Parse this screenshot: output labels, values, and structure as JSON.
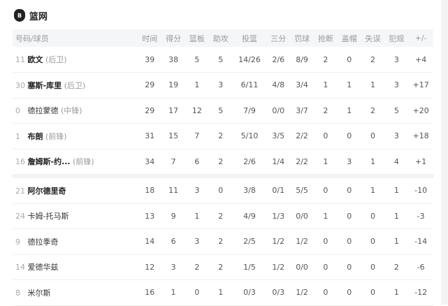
{
  "team": {
    "name": "篮网",
    "logo_text": "B"
  },
  "columns": [
    "号码/球员",
    "时间",
    "得分",
    "篮板",
    "助攻",
    "投篮",
    "三分",
    "罚球",
    "抢断",
    "盖帽",
    "失误",
    "犯规",
    "+/-"
  ],
  "starters": [
    {
      "no": "11",
      "name": "欧文",
      "pos": "(后卫)",
      "bold": true,
      "stats": [
        "39",
        "38",
        "5",
        "5",
        "14/26",
        "2/6",
        "8/9",
        "2",
        "0",
        "2",
        "3",
        "+4"
      ]
    },
    {
      "no": "30",
      "name": "塞斯-库里",
      "pos": "(后卫)",
      "bold": true,
      "stats": [
        "29",
        "19",
        "1",
        "3",
        "6/11",
        "4/8",
        "3/4",
        "1",
        "1",
        "1",
        "3",
        "+17"
      ]
    },
    {
      "no": "0",
      "name": "德拉蒙德",
      "pos": "(中锋)",
      "bold": false,
      "stats": [
        "29",
        "17",
        "12",
        "5",
        "7/9",
        "0/0",
        "3/7",
        "2",
        "1",
        "2",
        "5",
        "+20"
      ]
    },
    {
      "no": "1",
      "name": "布朗",
      "pos": "(前锋)",
      "bold": true,
      "stats": [
        "31",
        "15",
        "7",
        "2",
        "5/10",
        "3/5",
        "2/2",
        "0",
        "0",
        "0",
        "3",
        "+18"
      ]
    },
    {
      "no": "16",
      "name": "詹姆斯-约...",
      "pos": "(前锋)",
      "bold": true,
      "stats": [
        "34",
        "7",
        "6",
        "2",
        "2/6",
        "1/4",
        "2/2",
        "1",
        "3",
        "1",
        "4",
        "+1"
      ]
    }
  ],
  "bench": [
    {
      "no": "21",
      "name": "阿尔德里奇",
      "pos": "",
      "bold": true,
      "stats": [
        "18",
        "11",
        "3",
        "0",
        "3/8",
        "0/1",
        "5/5",
        "0",
        "0",
        "1",
        "1",
        "-10"
      ]
    },
    {
      "no": "24",
      "name": "卡姆-托马斯",
      "pos": "",
      "bold": false,
      "stats": [
        "13",
        "9",
        "1",
        "2",
        "4/9",
        "1/3",
        "0/0",
        "1",
        "0",
        "0",
        "1",
        "-3"
      ]
    },
    {
      "no": "9",
      "name": "德拉季奇",
      "pos": "",
      "bold": false,
      "stats": [
        "14",
        "6",
        "3",
        "2",
        "2/5",
        "1/2",
        "1/2",
        "0",
        "0",
        "0",
        "1",
        "-14"
      ]
    },
    {
      "no": "14",
      "name": "爱德华兹",
      "pos": "",
      "bold": false,
      "stats": [
        "12",
        "3",
        "2",
        "2",
        "1/5",
        "1/2",
        "0/0",
        "0",
        "0",
        "0",
        "2",
        "-6"
      ]
    },
    {
      "no": "8",
      "name": "米尔斯",
      "pos": "",
      "bold": false,
      "stats": [
        "16",
        "1",
        "0",
        "1",
        "0/3",
        "0/3",
        "1/2",
        "0",
        "0",
        "0",
        "1",
        "-12"
      ]
    }
  ]
}
